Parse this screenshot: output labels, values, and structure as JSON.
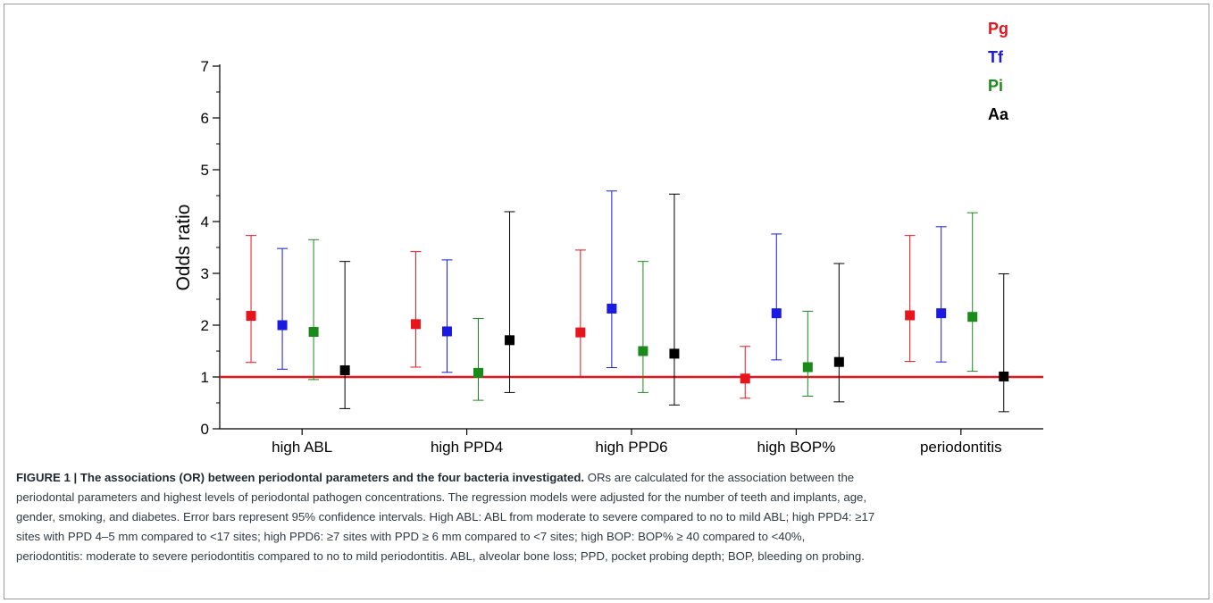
{
  "chart_data": {
    "type": "scatter",
    "ylabel": "Odds ratio",
    "ylim": [
      0,
      7
    ],
    "yticks": [
      "0",
      "1",
      "2",
      "3",
      "4",
      "5",
      "6",
      "7"
    ],
    "reference_line": 1,
    "reference_color": "#e8141b",
    "categories": [
      "high ABL",
      "high PPD4",
      "high PPD6",
      "high BOP%",
      "periodontitis"
    ],
    "series": [
      {
        "name": "Pg",
        "color": "#e8141b",
        "values": [
          2.18,
          2.02,
          1.86,
          0.97,
          2.19
        ],
        "lower": [
          1.28,
          1.19,
          1.0,
          0.59,
          1.3
        ],
        "upper": [
          3.73,
          3.42,
          3.45,
          1.59,
          3.73
        ]
      },
      {
        "name": "Tf",
        "color": "#1a1ae0",
        "values": [
          2.0,
          1.88,
          2.32,
          2.23,
          2.23
        ],
        "lower": [
          1.15,
          1.09,
          1.18,
          1.33,
          1.29
        ],
        "upper": [
          3.48,
          3.26,
          4.59,
          3.76,
          3.9
        ]
      },
      {
        "name": "Pi",
        "color": "#1a8a1a",
        "values": [
          1.87,
          1.08,
          1.5,
          1.19,
          2.16
        ],
        "lower": [
          0.95,
          0.55,
          0.7,
          0.63,
          1.11
        ],
        "upper": [
          3.65,
          2.13,
          3.23,
          2.27,
          4.17
        ]
      },
      {
        "name": "Aa",
        "color": "#000000",
        "values": [
          1.13,
          1.71,
          1.45,
          1.29,
          1.01
        ],
        "lower": [
          0.39,
          0.7,
          0.46,
          0.52,
          0.33
        ],
        "upper": [
          3.23,
          4.19,
          4.53,
          3.19,
          2.99
        ]
      }
    ],
    "legend_position": "top-right",
    "grid": false
  },
  "caption": {
    "title": "FIGURE 1 | The associations (OR) between periodontal parameters and the four bacteria investigated.",
    "lines": [
      " ORs are calculated for the association between the",
      "periodontal parameters and highest levels of periodontal pathogen concentrations. The regression models were adjusted for the number of teeth and implants, age,",
      "gender, smoking, and diabetes. Error bars represent 95% confidence intervals. High ABL: ABL from moderate to severe compared to no to mild ABL; high PPD4: ≥17",
      "sites with PPD 4–5 mm compared to <17 sites; high PPD6: ≥7 sites with PPD ≥ 6 mm compared to <7 sites; high BOP: BOP% ≥ 40 compared to <40%,",
      "periodontitis: moderate to severe periodontitis compared to no to mild periodontitis. ABL, alveolar bone loss; PPD, pocket probing depth; BOP, bleeding on probing."
    ]
  }
}
